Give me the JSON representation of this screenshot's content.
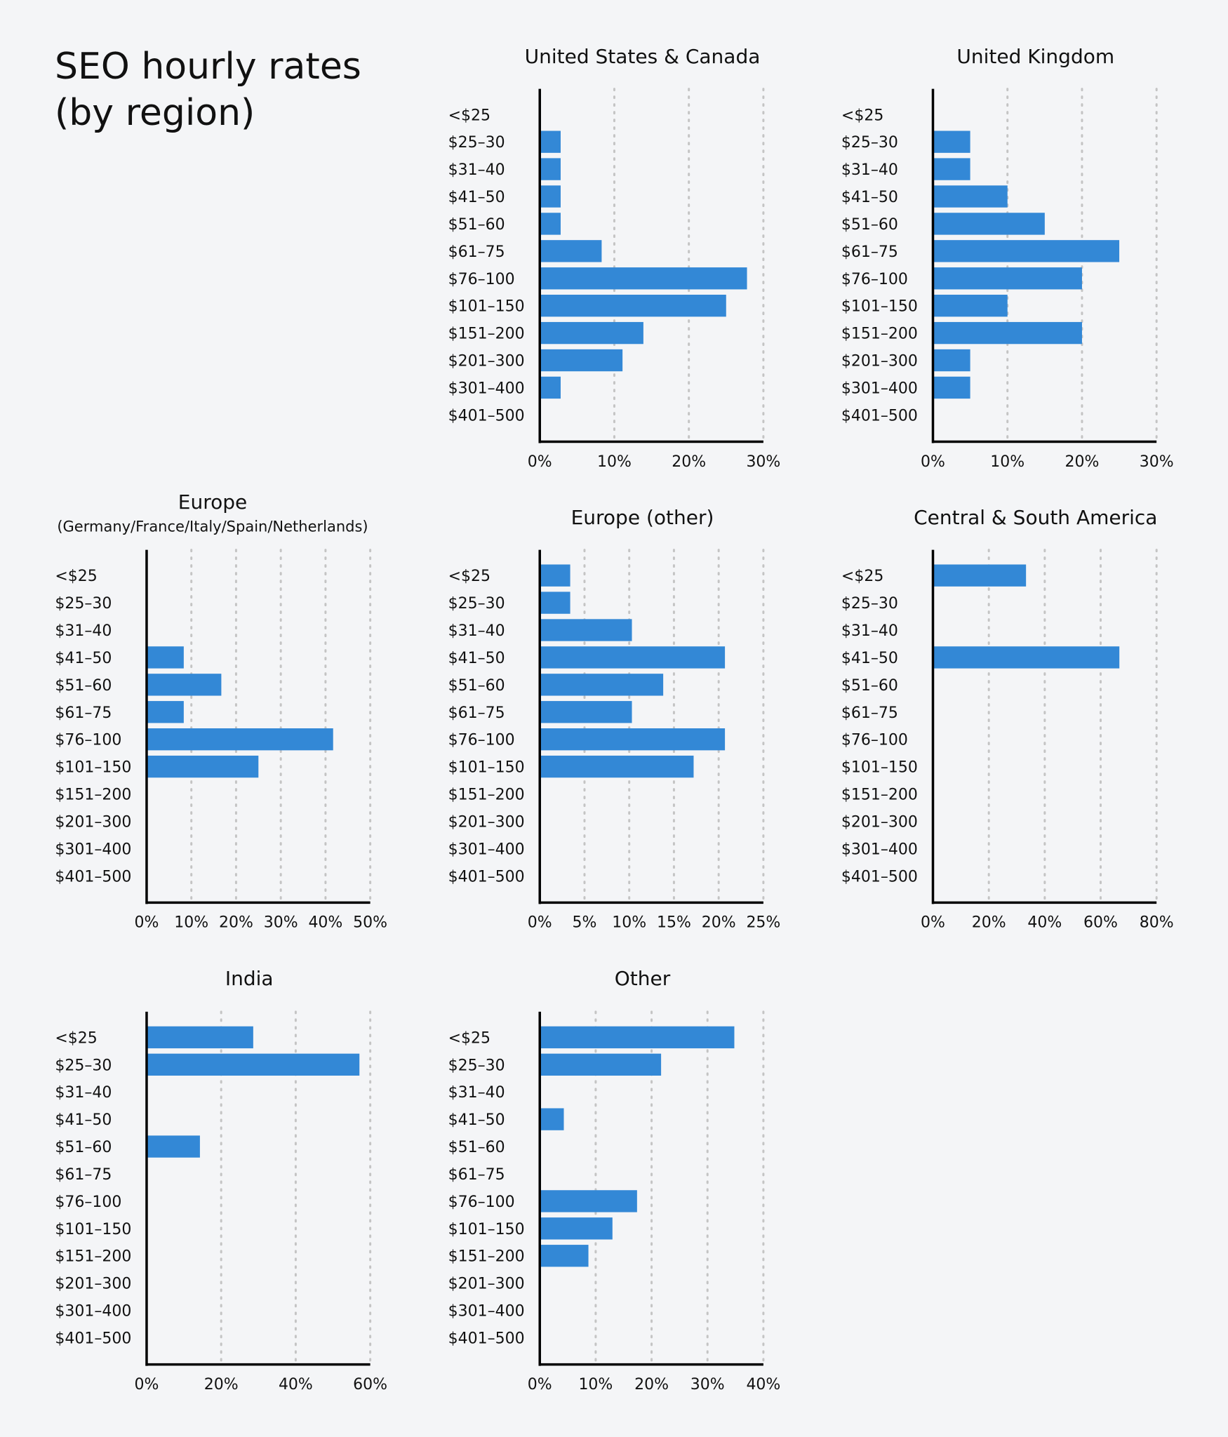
{
  "title_lines": [
    "SEO hourly rates",
    "(by region)"
  ],
  "colors": {
    "bar": "#3388d6",
    "axis": "#000000",
    "grid": "#c4c4c4",
    "background": "#f4f5f7"
  },
  "chart_data": [
    {
      "type": "bar",
      "orientation": "horizontal",
      "title": "United States & Canada",
      "subtitle": "",
      "categories": [
        "<$25",
        "$25–30",
        "$31–40",
        "$41–50",
        "$51–60",
        "$61–75",
        "$76–100",
        "$101–150",
        "$151–200",
        "$201–300",
        "$301–400",
        "$401–500"
      ],
      "values": [
        0,
        2.8,
        2.8,
        2.8,
        2.8,
        8.3,
        27.8,
        25,
        13.9,
        11.1,
        2.8,
        0
      ],
      "xlim": [
        0,
        30
      ],
      "xticks": [
        "0%",
        "10%",
        "20%",
        "30%"
      ],
      "grid": true
    },
    {
      "type": "bar",
      "orientation": "horizontal",
      "title": "United Kingdom",
      "subtitle": "",
      "categories": [
        "<$25",
        "$25–30",
        "$31–40",
        "$41–50",
        "$51–60",
        "$61–75",
        "$76–100",
        "$101–150",
        "$151–200",
        "$201–300",
        "$301–400",
        "$401–500"
      ],
      "values": [
        0,
        5,
        5,
        10,
        15,
        25,
        20,
        10,
        20,
        5,
        5,
        0
      ],
      "xlim": [
        0,
        30
      ],
      "xticks": [
        "0%",
        "10%",
        "20%",
        "30%"
      ],
      "grid": true
    },
    {
      "type": "bar",
      "orientation": "horizontal",
      "title": "Europe",
      "subtitle": "(Germany/France/Italy/Spain/Netherlands)",
      "categories": [
        "<$25",
        "$25–30",
        "$31–40",
        "$41–50",
        "$51–60",
        "$61–75",
        "$76–100",
        "$101–150",
        "$151–200",
        "$201–300",
        "$301–400",
        "$401–500"
      ],
      "values": [
        0,
        0,
        0,
        8.3,
        16.7,
        8.3,
        41.7,
        25,
        0,
        0,
        0,
        0
      ],
      "xlim": [
        0,
        50
      ],
      "xticks": [
        "0%",
        "10%",
        "20%",
        "30%",
        "40%",
        "50%"
      ],
      "grid": true
    },
    {
      "type": "bar",
      "orientation": "horizontal",
      "title": "Europe (other)",
      "subtitle": "",
      "categories": [
        "<$25",
        "$25–30",
        "$31–40",
        "$41–50",
        "$51–60",
        "$61–75",
        "$76–100",
        "$101–150",
        "$151–200",
        "$201–300",
        "$301–400",
        "$401–500"
      ],
      "values": [
        3.4,
        3.4,
        10.3,
        20.7,
        13.8,
        10.3,
        20.7,
        17.2,
        0,
        0,
        0,
        0
      ],
      "xlim": [
        0,
        25
      ],
      "xticks": [
        "0%",
        "5%",
        "10%",
        "15%",
        "20%",
        "25%"
      ],
      "grid": true
    },
    {
      "type": "bar",
      "orientation": "horizontal",
      "title": "Central & South America",
      "subtitle": "",
      "categories": [
        "<$25",
        "$25–30",
        "$31–40",
        "$41–50",
        "$51–60",
        "$61–75",
        "$76–100",
        "$101–150",
        "$151–200",
        "$201–300",
        "$301–400",
        "$401–500"
      ],
      "values": [
        33.3,
        0,
        0,
        66.7,
        0,
        0,
        0,
        0,
        0,
        0,
        0,
        0
      ],
      "xlim": [
        0,
        80
      ],
      "xticks": [
        "0%",
        "20%",
        "40%",
        "60%",
        "80%"
      ],
      "grid": true
    },
    {
      "type": "bar",
      "orientation": "horizontal",
      "title": "India",
      "subtitle": "",
      "categories": [
        "<$25",
        "$25–30",
        "$31–40",
        "$41–50",
        "$51–60",
        "$61–75",
        "$76–100",
        "$101–150",
        "$151–200",
        "$201–300",
        "$301–400",
        "$401–500"
      ],
      "values": [
        28.6,
        57.1,
        0,
        0,
        14.3,
        0,
        0,
        0,
        0,
        0,
        0,
        0
      ],
      "xlim": [
        0,
        60
      ],
      "xticks": [
        "0%",
        "20%",
        "40%",
        "60%"
      ],
      "grid": true
    },
    {
      "type": "bar",
      "orientation": "horizontal",
      "title": "Other",
      "subtitle": "",
      "categories": [
        "<$25",
        "$25–30",
        "$31–40",
        "$41–50",
        "$51–60",
        "$61–75",
        "$76–100",
        "$101–150",
        "$151–200",
        "$201–300",
        "$301–400",
        "$401–500"
      ],
      "values": [
        34.8,
        21.7,
        0,
        4.3,
        0,
        0,
        17.4,
        13,
        8.7,
        0,
        0,
        0
      ],
      "xlim": [
        0,
        40
      ],
      "xticks": [
        "0%",
        "10%",
        "20%",
        "30%",
        "40%"
      ],
      "grid": true
    }
  ]
}
